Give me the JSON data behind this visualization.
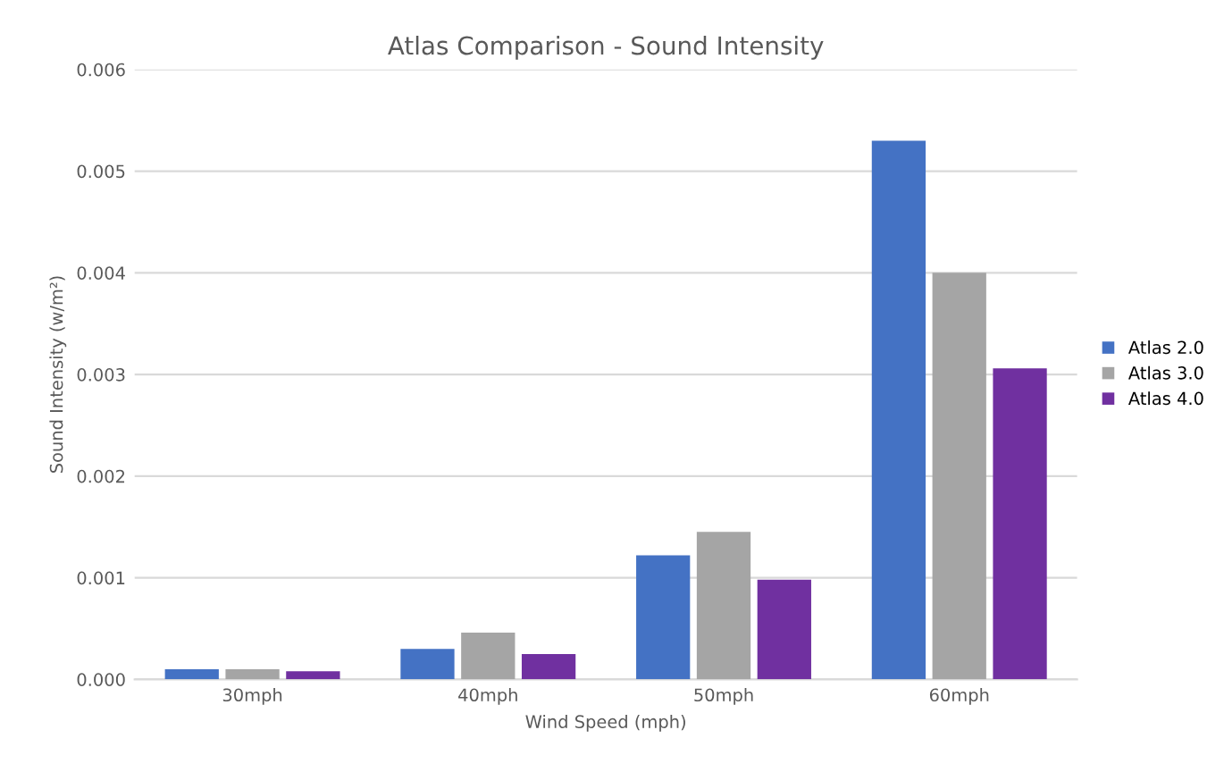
{
  "chart_data": {
    "type": "bar",
    "title": "Atlas Comparison - Sound Intensity",
    "xlabel": "Wind Speed (mph)",
    "ylabel": "Sound Intensity (w/m²)",
    "categories": [
      "30mph",
      "40mph",
      "50mph",
      "60mph"
    ],
    "series": [
      {
        "name": "Atlas 2.0",
        "color": "#4472c4",
        "values": [
          0.0001,
          0.0003,
          0.00122,
          0.0053
        ]
      },
      {
        "name": "Atlas 3.0",
        "color": "#a5a5a5",
        "values": [
          0.0001,
          0.00046,
          0.00145,
          0.004
        ]
      },
      {
        "name": "Atlas 4.0",
        "color": "#7030a0",
        "values": [
          8e-05,
          0.00025,
          0.00098,
          0.00306
        ]
      }
    ],
    "ylim": [
      0,
      0.006
    ],
    "yticks": [
      {
        "value": 0,
        "label": "0.000"
      },
      {
        "value": 0.001,
        "label": "0.001"
      },
      {
        "value": 0.002,
        "label": "0.002"
      },
      {
        "value": 0.003,
        "label": "0.003"
      },
      {
        "value": 0.004,
        "label": "0.004"
      },
      {
        "value": 0.005,
        "label": "0.005"
      },
      {
        "value": 0.006,
        "label": "0.006"
      }
    ],
    "grid": "y",
    "legend": "right"
  }
}
